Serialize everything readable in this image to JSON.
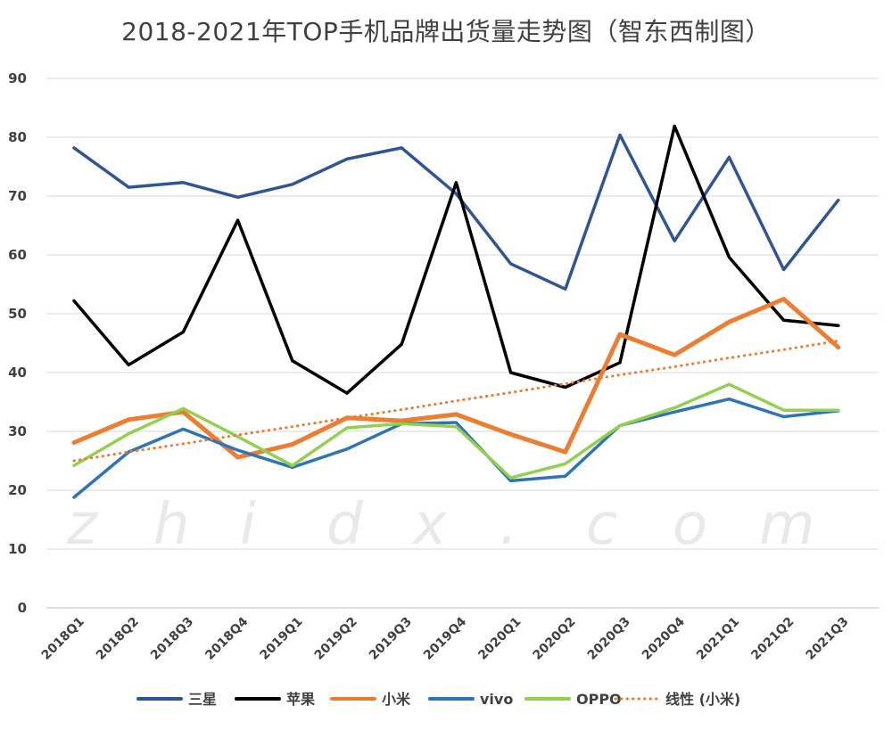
{
  "chart_data": {
    "type": "line",
    "title": "2018-2021年TOP手机品牌出货量走势图（智东西制图）",
    "watermark": "zhidx.com",
    "xlabel": "",
    "ylabel": "",
    "ylim": [
      0,
      90
    ],
    "yticks": [
      "0",
      "10",
      "20",
      "30",
      "40",
      "50",
      "60",
      "70",
      "80",
      "90"
    ],
    "grid": true,
    "legend_position": "bottom",
    "categories": [
      "2018Q1",
      "2018Q2",
      "2018Q3",
      "2018Q4",
      "2019Q1",
      "2019Q2",
      "2019Q3",
      "2019Q4",
      "2020Q1",
      "2020Q2",
      "2020Q3",
      "2020Q4",
      "2021Q1",
      "2021Q2",
      "2021Q3"
    ],
    "series": [
      {
        "name": "三星",
        "color": "#2F5597",
        "style": "solid",
        "values": [
          78.2,
          71.5,
          72.3,
          69.8,
          72.0,
          76.3,
          78.2,
          70.4,
          58.5,
          54.2,
          80.4,
          62.4,
          76.6,
          57.5,
          69.3
        ]
      },
      {
        "name": "苹果",
        "color": "#000000",
        "style": "solid",
        "values": [
          52.2,
          41.3,
          46.9,
          65.9,
          42.0,
          36.5,
          44.8,
          72.3,
          40.0,
          37.5,
          41.7,
          81.9,
          59.6,
          48.9,
          48.0
        ]
      },
      {
        "name": "小米",
        "color": "#ED7D31",
        "style": "solid",
        "values": [
          28.1,
          32.0,
          33.3,
          25.6,
          27.8,
          32.3,
          31.8,
          32.9,
          29.5,
          26.5,
          46.5,
          43.0,
          48.6,
          52.5,
          44.3
        ]
      },
      {
        "name": "vivo",
        "color": "#2E75B6",
        "style": "solid",
        "values": [
          18.8,
          26.5,
          30.4,
          26.8,
          23.9,
          27.0,
          31.3,
          31.5,
          21.6,
          22.4,
          31.0,
          33.3,
          35.5,
          32.5,
          33.5
        ]
      },
      {
        "name": "OPPO",
        "color": "#92D050",
        "style": "solid",
        "values": [
          24.2,
          29.6,
          33.9,
          29.1,
          24.2,
          30.6,
          31.3,
          30.8,
          22.1,
          24.5,
          31.0,
          34.0,
          38.0,
          33.6,
          33.6
        ]
      },
      {
        "name": "线性 (小米)",
        "color": "#ED7D31",
        "style": "dotted",
        "values": [
          25.0,
          26.5,
          27.9,
          29.4,
          30.8,
          32.3,
          33.7,
          35.2,
          36.6,
          38.1,
          39.6,
          41.0,
          42.5,
          43.9,
          45.4
        ]
      }
    ]
  }
}
